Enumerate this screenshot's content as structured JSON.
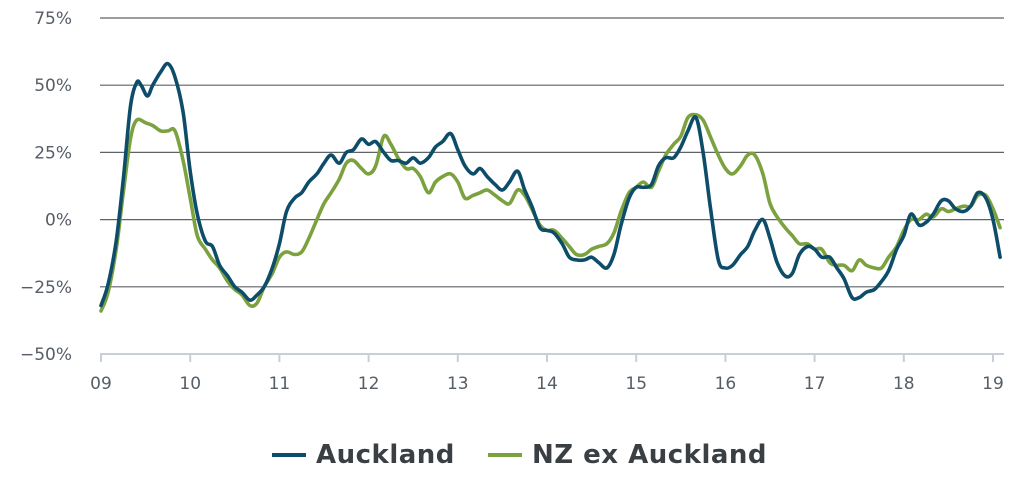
{
  "chart_data": {
    "type": "line",
    "title": "",
    "xlabel": "",
    "ylabel": "",
    "x_ticks": [
      "09",
      "10",
      "11",
      "12",
      "13",
      "14",
      "15",
      "16",
      "17",
      "18",
      "19"
    ],
    "y_ticks": [
      "75%",
      "50%",
      "25%",
      "0%",
      "−25%",
      "−50%"
    ],
    "y_tick_values": [
      75,
      50,
      25,
      0,
      -25,
      -50
    ],
    "xlim": [
      2009.0,
      2019.1
    ],
    "ylim": [
      -50,
      75
    ],
    "grid": "horizontal",
    "legend_position": "bottom-center",
    "series": [
      {
        "name": "Auckland",
        "color": "#0e4d6a",
        "points": [
          [
            2009.0,
            -32
          ],
          [
            2009.08,
            -24
          ],
          [
            2009.17,
            -8
          ],
          [
            2009.25,
            15
          ],
          [
            2009.33,
            42
          ],
          [
            2009.4,
            51
          ],
          [
            2009.45,
            50
          ],
          [
            2009.52,
            46
          ],
          [
            2009.58,
            50
          ],
          [
            2009.67,
            55
          ],
          [
            2009.75,
            58
          ],
          [
            2009.83,
            53
          ],
          [
            2009.92,
            40
          ],
          [
            2010.0,
            18
          ],
          [
            2010.08,
            2
          ],
          [
            2010.17,
            -8
          ],
          [
            2010.25,
            -10
          ],
          [
            2010.33,
            -17
          ],
          [
            2010.42,
            -21
          ],
          [
            2010.5,
            -25
          ],
          [
            2010.58,
            -27
          ],
          [
            2010.67,
            -30
          ],
          [
            2010.75,
            -28
          ],
          [
            2010.83,
            -25
          ],
          [
            2010.92,
            -18
          ],
          [
            2011.0,
            -9
          ],
          [
            2011.08,
            3
          ],
          [
            2011.17,
            8
          ],
          [
            2011.25,
            10
          ],
          [
            2011.33,
            14
          ],
          [
            2011.42,
            17
          ],
          [
            2011.5,
            21
          ],
          [
            2011.58,
            24
          ],
          [
            2011.67,
            21
          ],
          [
            2011.75,
            25
          ],
          [
            2011.83,
            26
          ],
          [
            2011.92,
            30
          ],
          [
            2012.0,
            28
          ],
          [
            2012.08,
            29
          ],
          [
            2012.17,
            25
          ],
          [
            2012.25,
            22
          ],
          [
            2012.33,
            22
          ],
          [
            2012.42,
            21
          ],
          [
            2012.5,
            23
          ],
          [
            2012.58,
            21
          ],
          [
            2012.67,
            23
          ],
          [
            2012.75,
            27
          ],
          [
            2012.83,
            29
          ],
          [
            2012.92,
            32
          ],
          [
            2013.0,
            26
          ],
          [
            2013.08,
            20
          ],
          [
            2013.17,
            17
          ],
          [
            2013.25,
            19
          ],
          [
            2013.33,
            16
          ],
          [
            2013.42,
            13
          ],
          [
            2013.5,
            11
          ],
          [
            2013.58,
            14
          ],
          [
            2013.67,
            18
          ],
          [
            2013.75,
            11
          ],
          [
            2013.83,
            5
          ],
          [
            2013.92,
            -3
          ],
          [
            2014.0,
            -4
          ],
          [
            2014.08,
            -5
          ],
          [
            2014.17,
            -9
          ],
          [
            2014.25,
            -14
          ],
          [
            2014.33,
            -15
          ],
          [
            2014.42,
            -15
          ],
          [
            2014.5,
            -14
          ],
          [
            2014.58,
            -16
          ],
          [
            2014.67,
            -18
          ],
          [
            2014.75,
            -13
          ],
          [
            2014.83,
            -2
          ],
          [
            2014.92,
            8
          ],
          [
            2015.0,
            12
          ],
          [
            2015.08,
            12
          ],
          [
            2015.17,
            13
          ],
          [
            2015.25,
            20
          ],
          [
            2015.33,
            23
          ],
          [
            2015.42,
            23
          ],
          [
            2015.5,
            27
          ],
          [
            2015.58,
            33
          ],
          [
            2015.67,
            38
          ],
          [
            2015.75,
            25
          ],
          [
            2015.83,
            5
          ],
          [
            2015.92,
            -15
          ],
          [
            2016.0,
            -18
          ],
          [
            2016.08,
            -17
          ],
          [
            2016.17,
            -13
          ],
          [
            2016.25,
            -10
          ],
          [
            2016.33,
            -4
          ],
          [
            2016.42,
            0
          ],
          [
            2016.5,
            -7
          ],
          [
            2016.58,
            -16
          ],
          [
            2016.67,
            -21
          ],
          [
            2016.75,
            -20
          ],
          [
            2016.83,
            -13
          ],
          [
            2016.92,
            -10
          ],
          [
            2017.0,
            -11
          ],
          [
            2017.08,
            -14
          ],
          [
            2017.17,
            -14
          ],
          [
            2017.25,
            -18
          ],
          [
            2017.33,
            -22
          ],
          [
            2017.42,
            -29
          ],
          [
            2017.5,
            -29
          ],
          [
            2017.58,
            -27
          ],
          [
            2017.67,
            -26
          ],
          [
            2017.75,
            -23
          ],
          [
            2017.83,
            -19
          ],
          [
            2017.92,
            -11
          ],
          [
            2018.0,
            -6
          ],
          [
            2018.08,
            2
          ],
          [
            2018.17,
            -2
          ],
          [
            2018.25,
            -1
          ],
          [
            2018.33,
            2
          ],
          [
            2018.42,
            7
          ],
          [
            2018.5,
            7
          ],
          [
            2018.58,
            4
          ],
          [
            2018.67,
            3
          ],
          [
            2018.75,
            5
          ],
          [
            2018.83,
            10
          ],
          [
            2018.92,
            8
          ],
          [
            2019.0,
            0
          ],
          [
            2019.08,
            -14
          ]
        ]
      },
      {
        "name": "NZ ex Auckland",
        "color": "#7ba23f",
        "points": [
          [
            2009.0,
            -34
          ],
          [
            2009.08,
            -27
          ],
          [
            2009.17,
            -11
          ],
          [
            2009.25,
            10
          ],
          [
            2009.33,
            30
          ],
          [
            2009.4,
            37
          ],
          [
            2009.5,
            36
          ],
          [
            2009.58,
            35
          ],
          [
            2009.67,
            33
          ],
          [
            2009.75,
            33
          ],
          [
            2009.83,
            33
          ],
          [
            2009.92,
            22
          ],
          [
            2010.0,
            8
          ],
          [
            2010.08,
            -6
          ],
          [
            2010.17,
            -11
          ],
          [
            2010.25,
            -15
          ],
          [
            2010.33,
            -18
          ],
          [
            2010.42,
            -23
          ],
          [
            2010.5,
            -26
          ],
          [
            2010.58,
            -28
          ],
          [
            2010.67,
            -32
          ],
          [
            2010.75,
            -31
          ],
          [
            2010.83,
            -25
          ],
          [
            2010.92,
            -20
          ],
          [
            2011.0,
            -14
          ],
          [
            2011.08,
            -12
          ],
          [
            2011.17,
            -13
          ],
          [
            2011.25,
            -12
          ],
          [
            2011.33,
            -7
          ],
          [
            2011.42,
            0
          ],
          [
            2011.5,
            6
          ],
          [
            2011.58,
            10
          ],
          [
            2011.67,
            15
          ],
          [
            2011.75,
            21
          ],
          [
            2011.83,
            22
          ],
          [
            2011.92,
            19
          ],
          [
            2012.0,
            17
          ],
          [
            2012.08,
            20
          ],
          [
            2012.17,
            31
          ],
          [
            2012.25,
            28
          ],
          [
            2012.33,
            23
          ],
          [
            2012.42,
            19
          ],
          [
            2012.5,
            19
          ],
          [
            2012.58,
            16
          ],
          [
            2012.67,
            10
          ],
          [
            2012.75,
            14
          ],
          [
            2012.83,
            16
          ],
          [
            2012.92,
            17
          ],
          [
            2013.0,
            14
          ],
          [
            2013.08,
            8
          ],
          [
            2013.17,
            9
          ],
          [
            2013.25,
            10
          ],
          [
            2013.33,
            11
          ],
          [
            2013.42,
            9
          ],
          [
            2013.5,
            7
          ],
          [
            2013.58,
            6
          ],
          [
            2013.67,
            11
          ],
          [
            2013.75,
            9
          ],
          [
            2013.83,
            4
          ],
          [
            2013.92,
            -2
          ],
          [
            2014.0,
            -4
          ],
          [
            2014.08,
            -4
          ],
          [
            2014.17,
            -7
          ],
          [
            2014.25,
            -10
          ],
          [
            2014.33,
            -13
          ],
          [
            2014.42,
            -13
          ],
          [
            2014.5,
            -11
          ],
          [
            2014.58,
            -10
          ],
          [
            2014.67,
            -9
          ],
          [
            2014.75,
            -5
          ],
          [
            2014.83,
            3
          ],
          [
            2014.92,
            10
          ],
          [
            2015.0,
            12
          ],
          [
            2015.08,
            14
          ],
          [
            2015.17,
            12
          ],
          [
            2015.25,
            18
          ],
          [
            2015.33,
            24
          ],
          [
            2015.42,
            28
          ],
          [
            2015.5,
            31
          ],
          [
            2015.58,
            38
          ],
          [
            2015.67,
            39
          ],
          [
            2015.75,
            37
          ],
          [
            2015.83,
            31
          ],
          [
            2015.92,
            24
          ],
          [
            2016.0,
            19
          ],
          [
            2016.08,
            17
          ],
          [
            2016.17,
            20
          ],
          [
            2016.25,
            24
          ],
          [
            2016.33,
            24
          ],
          [
            2016.42,
            17
          ],
          [
            2016.5,
            6
          ],
          [
            2016.58,
            1
          ],
          [
            2016.67,
            -3
          ],
          [
            2016.75,
            -6
          ],
          [
            2016.83,
            -9
          ],
          [
            2016.92,
            -9
          ],
          [
            2017.0,
            -11
          ],
          [
            2017.08,
            -11
          ],
          [
            2017.17,
            -16
          ],
          [
            2017.25,
            -17
          ],
          [
            2017.33,
            -17
          ],
          [
            2017.42,
            -19
          ],
          [
            2017.5,
            -15
          ],
          [
            2017.58,
            -17
          ],
          [
            2017.67,
            -18
          ],
          [
            2017.75,
            -18
          ],
          [
            2017.83,
            -14
          ],
          [
            2017.92,
            -10
          ],
          [
            2018.0,
            -4
          ],
          [
            2018.08,
            0
          ],
          [
            2018.17,
            0
          ],
          [
            2018.25,
            2
          ],
          [
            2018.33,
            1
          ],
          [
            2018.42,
            4
          ],
          [
            2018.5,
            3
          ],
          [
            2018.58,
            4
          ],
          [
            2018.67,
            5
          ],
          [
            2018.75,
            5
          ],
          [
            2018.83,
            9
          ],
          [
            2018.92,
            9
          ],
          [
            2019.0,
            4
          ],
          [
            2019.08,
            -3
          ]
        ]
      }
    ]
  }
}
